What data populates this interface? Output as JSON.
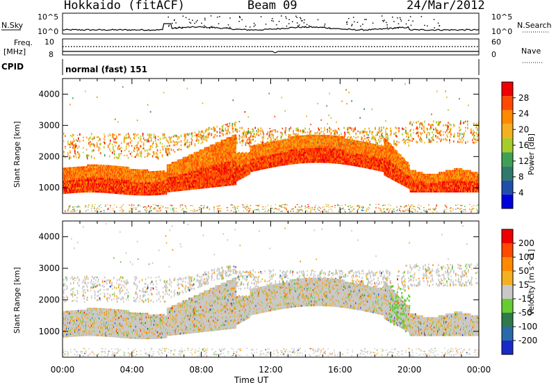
{
  "header": {
    "station": "Hokkaido (fitACF)",
    "beam": "Beam 09",
    "date": "24/Mar/2012"
  },
  "strips": {
    "nsky_label": "N.Sky",
    "nsky_ticks": [
      "10^5",
      "10^0"
    ],
    "nsearch_label": "N.Search",
    "nsearch_ticks": [
      "10^5",
      "10^0"
    ],
    "freq_label_1": "Freq.",
    "freq_label_2": "[MHz]",
    "freq_ticks": [
      "10",
      "8"
    ],
    "nave_label": "Nave",
    "nave_ticks": [
      "60",
      "0"
    ],
    "cpid_label": "CPID",
    "cpid_text": "normal (fast) 151"
  },
  "colors": {
    "power_scale": [
      "#0000dd",
      "#1f4fa8",
      "#2f7a6a",
      "#3fa055",
      "#a6cc2c",
      "#f3b020",
      "#ff8a00",
      "#ff4800",
      "#ee0000"
    ],
    "velocity_scale": [
      "#1a2ac8",
      "#2b6aa8",
      "#2f7a4a",
      "#66cc33",
      "#c8c8c8",
      "#f3b020",
      "#ff8a00",
      "#ff4800",
      "#ee0000"
    ],
    "gray": "#c8c8c8"
  },
  "chart_data": [
    {
      "type": "heatmap",
      "title": "",
      "xlabel": "Time UT",
      "ylabel": "Slant Range [km]",
      "quantity": "Power",
      "colorbar_label": "Power [dB]",
      "colorbar_ticks": [
        4,
        8,
        12,
        16,
        20,
        24,
        28
      ],
      "colorbar_range": [
        0,
        32
      ],
      "xlim": [
        "00:00",
        "24:00"
      ],
      "x_ticks": [
        "00:00",
        "04:00",
        "08:00",
        "12:00",
        "16:00",
        "20:00",
        "00:00"
      ],
      "ylim": [
        180,
        4500
      ],
      "y_ticks": [
        1000,
        2000,
        3000,
        4000
      ],
      "grid": false
    },
    {
      "type": "heatmap",
      "title": "",
      "xlabel": "Time UT",
      "ylabel": "Slant Range [km]",
      "quantity": "Velocity",
      "colorbar_label": "Velocity [m s^-1]",
      "colorbar_ticks": [
        200,
        100,
        50,
        15,
        -15,
        -50,
        -100,
        -200
      ],
      "xlim": [
        "00:00",
        "24:00"
      ],
      "x_ticks": [
        "00:00",
        "04:00",
        "08:00",
        "12:00",
        "16:00",
        "20:00",
        "00:00"
      ],
      "ylim": [
        180,
        4500
      ],
      "y_ticks": [
        1000,
        2000,
        3000,
        4000
      ],
      "grid": false
    }
  ]
}
